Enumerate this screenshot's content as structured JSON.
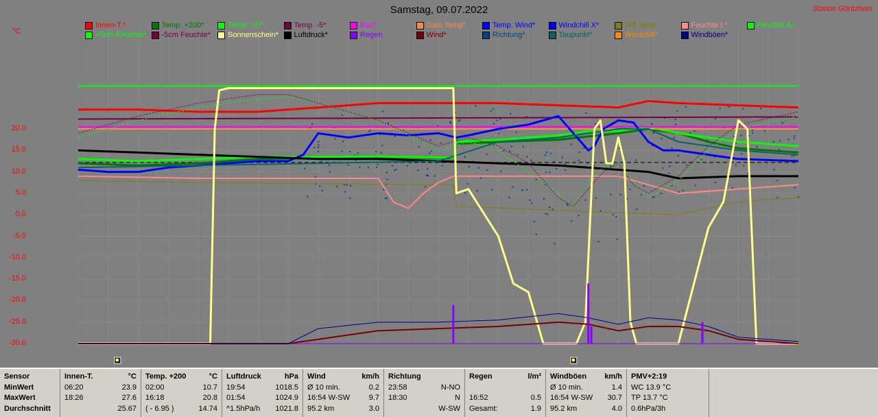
{
  "header": {
    "title": "Samstag, 09.07.2022",
    "station": "Station Göritzhain",
    "unit": "°C"
  },
  "colors": {
    "background": "#808080",
    "grid": "#888888"
  },
  "legend": [
    {
      "label": "Innen-T.*",
      "color": "#ff0000"
    },
    {
      "label": "Temp. +200*",
      "color": "#007700"
    },
    {
      "label": "Temp. +5*",
      "color": "#00ff00"
    },
    {
      "label": "Temp. -5*",
      "color": "#770044"
    },
    {
      "label": "Bad*",
      "color": "#ff00ff"
    },
    {
      "label": "Gast Temp*",
      "color": "#ff8844"
    },
    {
      "label": "Temp. Wind*",
      "color": "#0000ff"
    },
    {
      "label": "Windchill X*",
      "color": "#0000ff"
    },
    {
      "label": "Diff Temp.",
      "color": "#808000"
    },
    {
      "label": "Feuchte I.*",
      "color": "#ff8888"
    },
    {
      "label": "Feuchte A.*",
      "color": "#00ff00"
    },
    {
      "label": "+5cm Feuchte*",
      "color": "#00ff00"
    },
    {
      "label": "-5cm Feuchte*",
      "color": "#770044"
    },
    {
      "label": "Sonnenschein*",
      "color": "#ffff88"
    },
    {
      "label": "Luftdruck*",
      "color": "#000000"
    },
    {
      "label": "Regen",
      "color": "#8800ff"
    },
    {
      "label": "Wind*",
      "color": "#770000"
    },
    {
      "label": "Richtung*",
      "color": "#004488"
    },
    {
      "label": "Taupunkt*",
      "color": "#006666"
    },
    {
      "label": "Windchill*",
      "color": "#ff8800"
    },
    {
      "label": "Windböen*",
      "color": "#000088"
    }
  ],
  "chart_data": {
    "type": "line",
    "title": "Samstag, 09.07.2022",
    "ylabel": "°C",
    "ylim": [
      -30,
      30
    ],
    "yticks": [
      20,
      15,
      10,
      5,
      0,
      -5,
      -10,
      -15,
      -20,
      -25,
      -30
    ],
    "xlim": [
      0,
      24
    ],
    "grid": true,
    "legend_position": "top",
    "series": [
      {
        "name": "Innen-T.*",
        "color": "#ff0000",
        "width": 3,
        "x": [
          0,
          2,
          4,
          6,
          8,
          10,
          12,
          14,
          16,
          18,
          19,
          20,
          22,
          24
        ],
        "values": [
          24.5,
          24.5,
          24.0,
          24.0,
          25.0,
          26.0,
          26.0,
          26.0,
          25.5,
          25.0,
          26.5,
          26.0,
          25.5,
          25.0
        ]
      },
      {
        "name": "Temp. +200*",
        "color": "#007700",
        "width": 3,
        "x": [
          0,
          2,
          4,
          6,
          7.5,
          10,
          12.5,
          12.6,
          14,
          16,
          18,
          19,
          20,
          21,
          22,
          24
        ],
        "values": [
          12,
          11.5,
          12,
          13,
          13.2,
          13.4,
          13.2,
          16.5,
          17,
          17.5,
          19.0,
          20.0,
          19.0,
          17,
          15.5,
          14.5
        ]
      },
      {
        "name": "Temp. +5*",
        "color": "#00ff00",
        "width": 3,
        "x": [
          0,
          2,
          4,
          6,
          7.5,
          10,
          12.5,
          12.6,
          14,
          16,
          17,
          18,
          19,
          20,
          22,
          24
        ],
        "values": [
          13,
          12.5,
          13,
          13.5,
          13.5,
          13.6,
          13.3,
          17,
          17.5,
          18.5,
          19.5,
          19.5,
          20.5,
          19,
          17,
          16
        ]
      },
      {
        "name": "Temp. -5*",
        "color": "#770044",
        "width": 2,
        "x": [
          0,
          24
        ],
        "values": [
          22.3,
          22.8
        ]
      },
      {
        "name": "Bad*",
        "color": "#ff00ff",
        "width": 2,
        "x": [
          0,
          24
        ],
        "values": [
          20.5,
          20.5
        ]
      },
      {
        "name": "Gast Temp*",
        "color": "#ff8844",
        "width": 2,
        "x": [
          0,
          24
        ],
        "values": [
          20.0,
          20.0
        ]
      },
      {
        "name": "Temp. Wind*",
        "color": "#0000ff",
        "width": 3,
        "x": [
          0,
          1,
          2,
          3,
          4,
          5,
          6,
          7,
          7.5,
          8,
          9,
          10,
          11,
          12,
          12.6,
          13,
          14,
          15,
          15.5,
          16,
          16.5,
          17,
          17.2,
          17.5,
          18,
          18.5,
          19,
          19.5,
          20,
          21,
          22,
          24
        ],
        "values": [
          10.5,
          10,
          10,
          11,
          11.5,
          12,
          12.5,
          12.5,
          14,
          19,
          18,
          19,
          18.5,
          19,
          18,
          18.5,
          20,
          21,
          22,
          23,
          19,
          15,
          16,
          20,
          22,
          21.5,
          17,
          15,
          15,
          14,
          13,
          12.5
        ]
      },
      {
        "name": "Luftdruck*",
        "color": "#000000",
        "width": 3,
        "x": [
          0,
          2,
          4,
          6,
          8,
          10,
          12,
          14,
          16,
          18,
          19,
          20,
          22,
          24
        ],
        "values": [
          15,
          14.5,
          14,
          13.5,
          13,
          13,
          12.5,
          12,
          11.5,
          10.5,
          10,
          8.5,
          9,
          9
        ]
      },
      {
        "name": "Diff Temp.",
        "color": "#808000",
        "width": 1,
        "x": [
          0,
          4,
          12.5,
          12.6,
          16,
          18,
          20,
          22,
          24
        ],
        "values": [
          8,
          7.5,
          7.0,
          2.0,
          1.0,
          0.5,
          0,
          3.0,
          4.0
        ]
      },
      {
        "name": "Feuchte I.*",
        "color": "#ff8888",
        "width": 2,
        "x": [
          0,
          4,
          8,
          10,
          10.5,
          11,
          11.5,
          12,
          12.5,
          16,
          17,
          18,
          19,
          20,
          22,
          24
        ],
        "values": [
          9,
          8.5,
          8.5,
          8.5,
          3,
          1.5,
          5,
          7.5,
          9,
          9,
          9,
          9,
          7,
          5,
          6,
          7
        ]
      },
      {
        "name": "+5cm Feuchte*",
        "color": "#00ff00",
        "width": 1,
        "dash": "3,3",
        "x": [
          0,
          2,
          4,
          6,
          7,
          8,
          10,
          12,
          13,
          14,
          15,
          16,
          16.5,
          17,
          17.5,
          18,
          18.5,
          19,
          20,
          21,
          22,
          24
        ],
        "values": [
          18,
          22,
          25,
          27,
          27.5,
          26,
          22,
          15,
          17,
          15,
          10,
          5,
          2,
          8,
          11,
          12,
          8,
          4,
          8,
          15,
          20,
          23
        ]
      },
      {
        "name": "-5cm Feuchte*",
        "color": "#770044",
        "width": 1,
        "dash": "2,2",
        "x": [
          0,
          2,
          4,
          6,
          7,
          8,
          10,
          12,
          13,
          14,
          15,
          16,
          16.5,
          17,
          17.5,
          18,
          18.5,
          19,
          20,
          21,
          22,
          24
        ],
        "values": [
          19,
          23,
          26,
          28,
          28,
          26,
          22,
          16,
          18,
          16,
          12,
          4,
          2,
          6,
          10,
          12,
          7,
          5,
          9,
          16,
          21,
          24
        ]
      },
      {
        "name": "Taupunkt*",
        "color": "#006666",
        "width": 2,
        "x": [
          0,
          4,
          8,
          12,
          14,
          16,
          17,
          18,
          19,
          20,
          22,
          24
        ],
        "values": [
          11,
          11.5,
          12,
          12.5,
          17,
          18,
          19,
          20,
          20,
          17,
          15,
          14
        ]
      },
      {
        "name": "Sonnenschein*",
        "color": "#ffff88",
        "width": 3,
        "x": [
          0,
          4.4,
          4.55,
          4.7,
          5,
          12.5,
          12.6,
          13,
          14,
          14.5,
          15,
          15.5,
          16,
          16.3,
          16.6,
          16.9,
          17.2,
          17.4,
          17.6,
          17.8,
          18,
          18.2,
          18.4,
          18.6,
          18.8,
          19,
          19.3,
          19.6,
          20,
          21,
          21.5,
          22,
          22.3,
          22.6,
          23,
          24
        ],
        "values": [
          -30,
          -30,
          20,
          29,
          29.5,
          29.5,
          5,
          6,
          -5,
          -16,
          -18,
          -30,
          -30,
          -30,
          -30,
          -25,
          20,
          22,
          12,
          12,
          18,
          12,
          -25,
          -30,
          -30,
          -30,
          -30,
          -30,
          -30,
          -3,
          3,
          22,
          20,
          -30,
          -30,
          -30
        ]
      },
      {
        "name": "Regen",
        "color": "#8800ff",
        "width": 1,
        "x": [
          0,
          24
        ],
        "values": [
          -30,
          -30
        ]
      },
      {
        "name": "Wind*",
        "color": "#770000",
        "width": 2,
        "x": [
          0,
          7,
          8,
          10,
          12,
          14,
          16,
          17,
          18,
          19,
          20,
          21,
          22,
          24
        ],
        "values": [
          -30,
          -30,
          -29,
          -27,
          -26.5,
          -26,
          -25,
          -25.5,
          -27,
          -26,
          -26,
          -27,
          -29,
          -30
        ]
      },
      {
        "name": "Windböen*",
        "color": "#000088",
        "width": 1,
        "x": [
          0,
          7,
          8,
          10,
          12,
          14,
          16,
          17,
          18,
          19,
          20,
          21,
          22,
          24
        ],
        "values": [
          -30,
          -30,
          -26.5,
          -25,
          -25,
          -24.5,
          -23,
          -24,
          -25.5,
          -24,
          -24.5,
          -26,
          -28.5,
          -29.5
        ]
      }
    ],
    "reference_lines": [
      {
        "name": "Feuchte A.*",
        "color": "#00ff00",
        "value": 30,
        "width": 2
      },
      {
        "name": "Temp. +200* Mittel",
        "color": "#000000",
        "value": 12.2,
        "dash": "6,4",
        "width": 1
      }
    ],
    "rain_spikes": [
      {
        "x": 12.5,
        "height": 9
      },
      {
        "x": 17.0,
        "height": 14
      },
      {
        "x": 17.1,
        "height": 4
      },
      {
        "x": 20.8,
        "height": 5
      }
    ],
    "sun_markers_x": [
      1.3,
      16.5
    ]
  },
  "stats": {
    "columns": [
      {
        "rows": [
          [
            "Sensor",
            ""
          ],
          [
            "MinWert",
            ""
          ],
          [
            "MaxWert",
            ""
          ],
          [
            "Durchschnitt",
            ""
          ]
        ]
      },
      {
        "header": [
          "Innen-T.",
          "°C"
        ],
        "rows": [
          [
            "06:20",
            "23.9"
          ],
          [
            "18:26",
            "27.6"
          ],
          [
            "",
            "25.67"
          ]
        ]
      },
      {
        "header": [
          "Temp. +200",
          "°C"
        ],
        "rows": [
          [
            "02:00",
            "10.7"
          ],
          [
            "16:18",
            "20.8"
          ],
          [
            "( - 6.95 )",
            "14.74"
          ]
        ]
      },
      {
        "header": [
          "Luftdruck",
          "hPa"
        ],
        "rows": [
          [
            "19:54",
            "1018.5"
          ],
          [
            "01:54",
            "1024.9"
          ],
          [
            "^1.5hPa/h",
            "1021.8"
          ]
        ]
      },
      {
        "header": [
          "Wind",
          "km/h"
        ],
        "rows": [
          [
            "Ø 10 min.",
            "0.2"
          ],
          [
            "16:54  W-SW",
            "9.7"
          ],
          [
            "95.2 km",
            "3.0"
          ]
        ]
      },
      {
        "header": [
          "Richtung",
          ""
        ],
        "rows": [
          [
            "23:58",
            "N-NO"
          ],
          [
            "18:30",
            "N"
          ],
          [
            "",
            "W-SW"
          ]
        ]
      },
      {
        "header": [
          "Regen",
          "l/m²"
        ],
        "rows": [
          [
            "",
            ""
          ],
          [
            "16:52",
            "0.5"
          ],
          [
            "Gesamt:",
            "1.9"
          ]
        ]
      },
      {
        "header": [
          "Windböen",
          "km/h"
        ],
        "rows": [
          [
            "Ø 10 min.",
            "1.4"
          ],
          [
            "16:54  W-SW",
            "30.7"
          ],
          [
            "95.2 km",
            "4.0"
          ]
        ]
      },
      {
        "header": [
          "PMV+2:19",
          ""
        ],
        "rows": [
          [
            "WC 13.9 °C",
            ""
          ],
          [
            "TP 13.7 °C",
            ""
          ],
          [
            "0.6hPa/3h",
            ""
          ]
        ]
      }
    ]
  }
}
